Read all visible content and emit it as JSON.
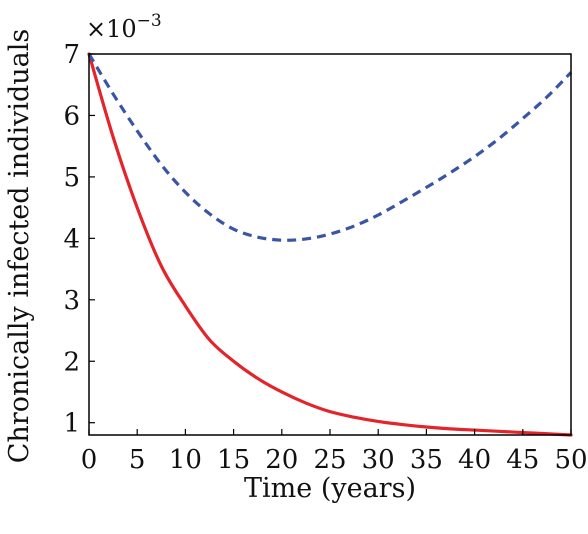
{
  "chart_data": {
    "type": "line",
    "title": "",
    "xlabel": "Time (years)",
    "ylabel": "Chronically infected individuals",
    "y_multiplier": {
      "base": "×10",
      "exponent": "−3"
    },
    "xlim": [
      0,
      50
    ],
    "ylim": [
      0.8,
      7
    ],
    "x_ticks": [
      0,
      5,
      10,
      15,
      20,
      25,
      30,
      35,
      40,
      45,
      50
    ],
    "y_ticks": [
      1,
      2,
      3,
      4,
      5,
      6,
      7
    ],
    "grid": false,
    "legend": "none",
    "x": [
      0,
      2.5,
      5,
      7.5,
      10,
      12.5,
      15,
      17.5,
      20,
      22.5,
      25,
      27.5,
      30,
      32.5,
      35,
      37.5,
      40,
      42.5,
      45,
      47.5,
      50
    ],
    "series": [
      {
        "style": "solid",
        "color": "#e3242b",
        "values": [
          7.0,
          5.65,
          4.5,
          3.55,
          2.9,
          2.35,
          2.0,
          1.72,
          1.5,
          1.32,
          1.18,
          1.09,
          1.02,
          0.97,
          0.93,
          0.9,
          0.88,
          0.86,
          0.84,
          0.82,
          0.8
        ]
      },
      {
        "style": "dashed",
        "color": "#3a55a4",
        "values": [
          7.0,
          6.35,
          5.75,
          5.2,
          4.75,
          4.4,
          4.15,
          4.02,
          3.97,
          3.99,
          4.07,
          4.2,
          4.38,
          4.6,
          4.83,
          5.07,
          5.33,
          5.62,
          5.95,
          6.3,
          6.7
        ]
      }
    ]
  }
}
